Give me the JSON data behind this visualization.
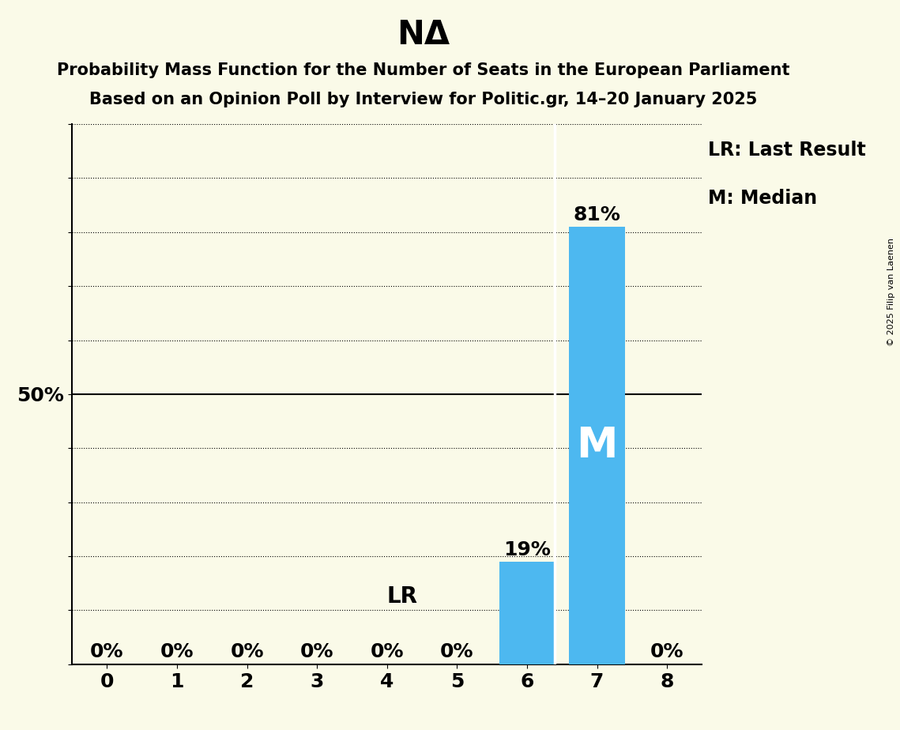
{
  "title": "NΔ",
  "subtitle_line1": "Probability Mass Function for the Number of Seats in the European Parliament",
  "subtitle_line2": "Based on an Opinion Poll by Interview for Politic.gr, 14–20 January 2025",
  "copyright": "© 2025 Filip van Laenen",
  "seats": [
    0,
    1,
    2,
    3,
    4,
    5,
    6,
    7,
    8
  ],
  "probabilities": [
    0.0,
    0.0,
    0.0,
    0.0,
    0.0,
    0.0,
    0.19,
    0.81,
    0.0
  ],
  "bar_color": "#4db8f0",
  "background_color": "#fafae8",
  "median": 7,
  "last_result": 7,
  "ylim": [
    0,
    1.0
  ],
  "ylabel_ticks": [
    0.0,
    0.1,
    0.2,
    0.3,
    0.4,
    0.5,
    0.6,
    0.7,
    0.8,
    0.9,
    1.0
  ],
  "title_fontsize": 30,
  "subtitle_fontsize": 15,
  "tick_fontsize": 18,
  "label_fontsize": 20,
  "legend_fontsize": 17,
  "pct_label_fontsize": 18,
  "median_label_fontsize": 38,
  "lr_label_fontsize": 20,
  "copyright_fontsize": 8
}
